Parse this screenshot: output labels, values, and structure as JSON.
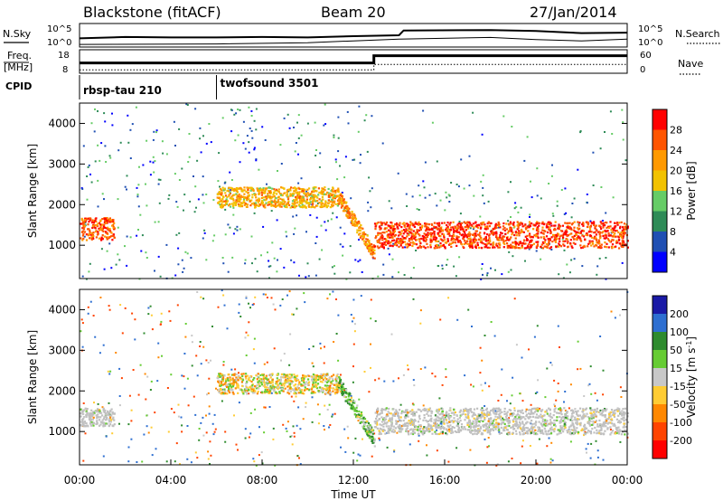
{
  "header": {
    "station": "Blackstone (fitACF)",
    "beam": "Beam 20",
    "date": "27/Jan/2014"
  },
  "colors": {
    "power_scale": [
      "#0000ff",
      "#1f4fb3",
      "#2e8b57",
      "#66cc66",
      "#f2c200",
      "#ff9900",
      "#ff5500",
      "#ff0000"
    ],
    "velocity_scale": [
      "#1a1aa6",
      "#2e6fd1",
      "#2e8b2e",
      "#66cc33",
      "#c8c8c8",
      "#ffcc33",
      "#ff8800",
      "#ff4400",
      "#ff0000"
    ],
    "ground_scatter": "#c0c0c0"
  },
  "chart_data": [
    {
      "type": "line",
      "panel": "noise",
      "left_label": "N.Sky",
      "right_label": "N.Search",
      "left_ticks": [
        "10^5",
        "10^0"
      ],
      "right_ticks": [
        "10^5",
        "10^0"
      ],
      "x_range_hours": [
        0,
        24
      ],
      "series": [
        {
          "values": [
            [
              0,
              1.8
            ],
            [
              2,
              2.1
            ],
            [
              4,
              2.0
            ],
            [
              6,
              2.0
            ],
            [
              8,
              2.1
            ],
            [
              10,
              2.0
            ],
            [
              12,
              2.3
            ],
            [
              14,
              2.5
            ],
            [
              14.2,
              3.6
            ],
            [
              18,
              3.7
            ],
            [
              20,
              3.5
            ],
            [
              22,
              3.0
            ],
            [
              24,
              3.1
            ]
          ]
        },
        {
          "values": [
            [
              0,
              0.4
            ],
            [
              6,
              0.5
            ],
            [
              10,
              0.8
            ],
            [
              12,
              1.2
            ],
            [
              14,
              1.6
            ],
            [
              18,
              2.0
            ],
            [
              20,
              1.5
            ],
            [
              22,
              1.2
            ],
            [
              24,
              1.6
            ]
          ]
        }
      ]
    },
    {
      "type": "line",
      "panel": "frequency",
      "left_label_1": "Freq.",
      "left_label_2": "[MHz]",
      "right_label": "Nave",
      "left_ticks": [
        "18",
        "8"
      ],
      "right_ticks": [
        "60",
        "0"
      ],
      "x_range_hours": [
        0,
        24
      ],
      "series": [
        {
          "values": [
            [
              0,
              11.5
            ],
            [
              12.9,
              11.5
            ],
            [
              12.9,
              16.5
            ],
            [
              24,
              16.5
            ]
          ]
        },
        {
          "values": [
            [
              0,
              7
            ],
            [
              12.9,
              7
            ],
            [
              12.9,
              22
            ],
            [
              24,
              22
            ]
          ]
        }
      ]
    },
    {
      "type": "bar",
      "panel": "cpid",
      "label": "CPID",
      "segments": [
        {
          "name": "rbsp-tau 210",
          "start_hour": 0,
          "end_hour": 6
        },
        {
          "name": "twofsound 3501",
          "start_hour": 6,
          "end_hour": 24
        }
      ]
    },
    {
      "type": "heatmap",
      "panel": "power",
      "ylabel": "Slant Range [km]",
      "xlabel": "",
      "ylim": [
        180,
        4500
      ],
      "y_ticks": [
        1000,
        2000,
        3000,
        4000
      ],
      "colorbar_label": "Power [dB]",
      "colorbar_ticks": [
        28,
        24,
        20,
        16,
        12,
        8,
        4
      ],
      "clim": [
        0,
        32
      ],
      "scatter_bands": [
        {
          "start_hour": 0,
          "end_hour": 1.5,
          "range_low": 1150,
          "range_high": 1700,
          "power": 26
        },
        {
          "start_hour": 6,
          "end_hour": 11.3,
          "range_low": 1950,
          "range_high": 2450,
          "power": 20
        },
        {
          "start_hour": 11.3,
          "end_hour": 12.9,
          "range_low": 900,
          "range_high": 2400,
          "power": 22
        },
        {
          "start_hour": 12.9,
          "end_hour": 24,
          "range_low": 950,
          "range_high": 1600,
          "power": 27
        }
      ]
    },
    {
      "type": "heatmap",
      "panel": "velocity",
      "ylabel": "Slant Range [km]",
      "xlabel": "Time UT",
      "ylim": [
        180,
        4500
      ],
      "y_ticks": [
        1000,
        2000,
        3000,
        4000
      ],
      "colorbar_label": "Velocity [m s^-1]",
      "colorbar_ticks": [
        200,
        100,
        50,
        15,
        -15,
        -50,
        -100,
        -200
      ],
      "clim": [
        -250,
        250
      ],
      "x_ticks": [
        "00:00",
        "04:00",
        "08:00",
        "12:00",
        "16:00",
        "20:00",
        "00:00"
      ],
      "scatter_bands": [
        {
          "start_hour": 0,
          "end_hour": 1.5,
          "range_low": 1150,
          "range_high": 1600,
          "velocity": 0
        },
        {
          "start_hour": 6,
          "end_hour": 11.3,
          "range_low": 1950,
          "range_high": 2450,
          "velocity": -20
        },
        {
          "start_hour": 11.3,
          "end_hour": 12.9,
          "range_low": 900,
          "range_high": 2400,
          "velocity": 40
        },
        {
          "start_hour": 12.9,
          "end_hour": 24,
          "range_low": 950,
          "range_high": 1600,
          "velocity": 0
        }
      ]
    }
  ]
}
